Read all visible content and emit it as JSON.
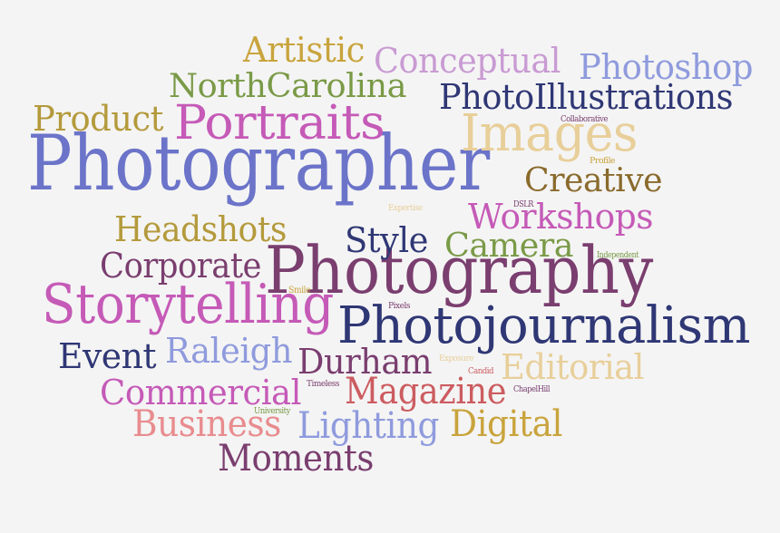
{
  "palette": {
    "background": "#f4f4f4",
    "blue": "#6b74c9",
    "navy": "#2f3775",
    "plum": "#7a3e6f",
    "orchid": "#c55ab7",
    "gold": "#c9a43d",
    "khaki": "#b49a3c",
    "brown": "#8a6a2c",
    "tan": "#e8cf9a",
    "green": "#7a9a47",
    "red": "#cc5c60",
    "pink": "#e88c8f",
    "lavender": "#c99bd3",
    "periwinkle": "#8f9bdd"
  },
  "words": [
    {
      "id": "photographer",
      "text": "Photographer",
      "color": "blue"
    },
    {
      "id": "photography",
      "text": "Photography",
      "color": "plum"
    },
    {
      "id": "photojournalism",
      "text": "Photojournalism",
      "color": "navy"
    },
    {
      "id": "storytelling",
      "text": "Storytelling",
      "color": "orchid"
    },
    {
      "id": "images",
      "text": "Images",
      "color": "tan"
    },
    {
      "id": "portraits",
      "text": "Portraits",
      "color": "orchid"
    },
    {
      "id": "photoillustrations",
      "text": "PhotoIllustrations",
      "color": "navy"
    },
    {
      "id": "northcarolina",
      "text": "NorthCarolina",
      "color": "green"
    },
    {
      "id": "conceptual",
      "text": "Conceptual",
      "color": "lavender"
    },
    {
      "id": "photoshop",
      "text": "Photoshop",
      "color": "periwinkle"
    },
    {
      "id": "artistic",
      "text": "Artistic",
      "color": "gold"
    },
    {
      "id": "product",
      "text": "Product",
      "color": "khaki"
    },
    {
      "id": "creative",
      "text": "Creative",
      "color": "brown"
    },
    {
      "id": "workshops",
      "text": "Workshops",
      "color": "orchid"
    },
    {
      "id": "headshots",
      "text": "Headshots",
      "color": "khaki"
    },
    {
      "id": "style",
      "text": "Style",
      "color": "navy"
    },
    {
      "id": "camera",
      "text": "Camera",
      "color": "green"
    },
    {
      "id": "corporate",
      "text": "Corporate",
      "color": "plum"
    },
    {
      "id": "event",
      "text": "Event",
      "color": "navy"
    },
    {
      "id": "raleigh",
      "text": "Raleigh",
      "color": "periwinkle"
    },
    {
      "id": "durham",
      "text": "Durham",
      "color": "plum"
    },
    {
      "id": "editorial",
      "text": "Editorial",
      "color": "tan"
    },
    {
      "id": "commercial",
      "text": "Commercial",
      "color": "orchid"
    },
    {
      "id": "magazine",
      "text": "Magazine",
      "color": "red"
    },
    {
      "id": "business",
      "text": "Business",
      "color": "pink"
    },
    {
      "id": "lighting",
      "text": "Lighting",
      "color": "periwinkle"
    },
    {
      "id": "digital",
      "text": "Digital",
      "color": "gold"
    },
    {
      "id": "moments",
      "text": "Moments",
      "color": "plum"
    },
    {
      "id": "collaborative",
      "text": "Collaborative",
      "color": "plum"
    },
    {
      "id": "profile",
      "text": "Profile",
      "color": "gold"
    },
    {
      "id": "expertise",
      "text": "Expertise",
      "color": "tan"
    },
    {
      "id": "dslr",
      "text": "DSLR",
      "color": "plum"
    },
    {
      "id": "independent",
      "text": "Independent",
      "color": "green"
    },
    {
      "id": "smile",
      "text": "Smile",
      "color": "gold"
    },
    {
      "id": "pixels",
      "text": "Pixels",
      "color": "plum"
    },
    {
      "id": "exposure",
      "text": "Exposure",
      "color": "tan"
    },
    {
      "id": "candid",
      "text": "Candid",
      "color": "red"
    },
    {
      "id": "timeless",
      "text": "Timeless",
      "color": "plum"
    },
    {
      "id": "chapelhill",
      "text": "ChapelHill",
      "color": "plum"
    },
    {
      "id": "university",
      "text": "University",
      "color": "green"
    }
  ]
}
